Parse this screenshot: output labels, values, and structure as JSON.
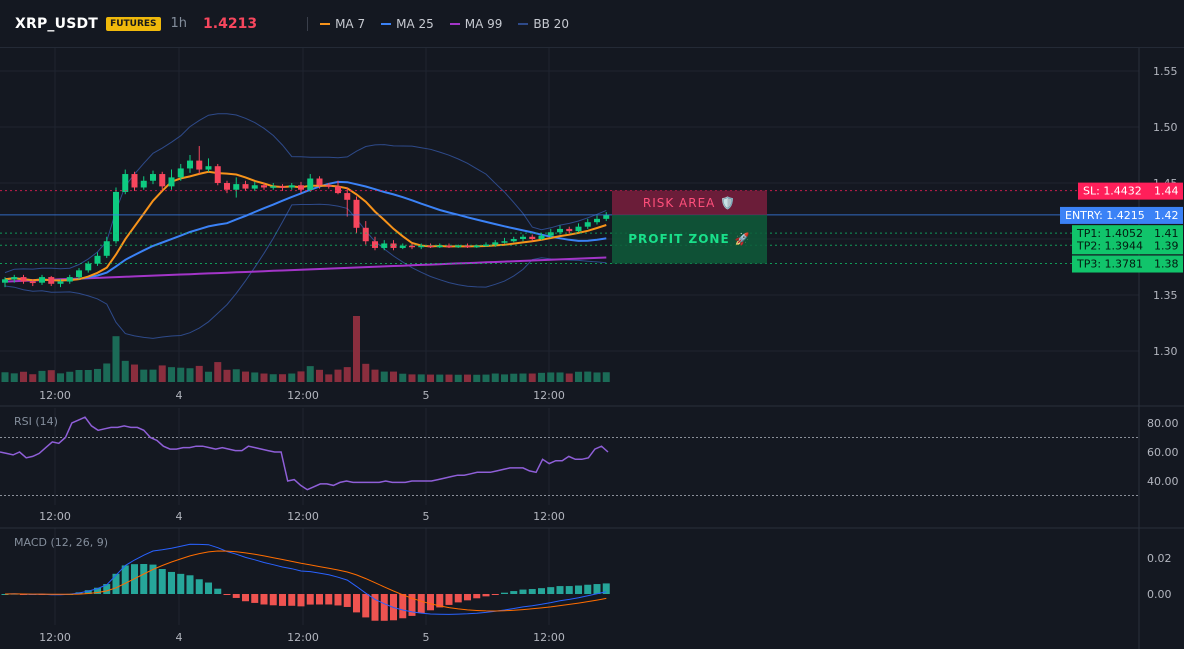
{
  "header": {
    "symbol": "XRP_USDT",
    "badge": "FUTURES",
    "timeframe": "1h",
    "last_price": "1.4213",
    "indicators": [
      {
        "label": "MA 7",
        "color": "#f7931a"
      },
      {
        "label": "MA 25",
        "color": "#3b82f6"
      },
      {
        "label": "MA 99",
        "color": "#a335c8"
      },
      {
        "label": "BB 20",
        "color": "#2e4a8a"
      }
    ]
  },
  "colors": {
    "background": "#141821",
    "up": "#0ecb81",
    "down": "#f6465d",
    "entry": "#3b82f6",
    "sl": "#ff1f5a",
    "tp": "#11c46b"
  },
  "time_axis": [
    "12:00",
    "4",
    "12:00",
    "5",
    "12:00"
  ],
  "price_axis": [
    "1.55",
    "1.50",
    "1.45",
    "1.40",
    "1.35",
    "1.30"
  ],
  "zones": {
    "risk_label": "RISK AREA 🛡️",
    "profit_label": "PROFIT ZONE 🚀"
  },
  "levels": [
    {
      "key": "sl",
      "text": "SL: 1.4432",
      "value": "1.44",
      "price": 1.4432
    },
    {
      "key": "entry",
      "text": "ENTRY: 1.4215",
      "value": "1.42",
      "price": 1.4215
    },
    {
      "key": "tp1",
      "text": "TP1: 1.4052",
      "value": "1.41",
      "price": 1.4052
    },
    {
      "key": "tp2",
      "text": "TP2: 1.3944",
      "value": "1.39",
      "price": 1.3944
    },
    {
      "key": "tp3",
      "text": "TP3: 1.3781",
      "value": "1.38",
      "price": 1.3781
    }
  ],
  "rsi": {
    "title": "RSI (14)",
    "axis": [
      "80.00",
      "60.00",
      "40.00"
    ],
    "overbought": 70,
    "oversold": 30,
    "values": [
      60,
      59,
      58,
      60,
      56,
      57,
      59,
      63,
      67,
      66,
      70,
      80,
      82,
      84,
      78,
      75,
      76,
      77,
      77,
      78,
      77,
      77,
      75,
      70,
      68,
      64,
      62,
      62,
      63,
      63,
      64,
      64,
      63,
      62,
      63,
      62,
      61,
      61,
      64,
      63,
      62,
      61,
      60,
      60,
      40,
      41,
      37,
      34,
      36,
      38,
      38,
      37,
      39,
      40,
      39,
      39,
      39,
      39,
      39,
      40,
      39,
      39,
      39,
      40,
      40,
      40,
      40,
      41,
      42,
      43,
      44,
      44,
      45,
      46,
      46,
      46,
      47,
      48,
      49,
      49,
      49,
      47,
      46,
      55,
      52,
      54,
      54,
      57,
      55,
      55,
      56,
      62,
      64,
      60
    ]
  },
  "macd": {
    "title": "MACD (12, 26, 9)",
    "axis": [
      "0.02",
      "0.00"
    ]
  },
  "candles": [
    [
      1.361,
      1.364,
      1.357,
      1.366
    ],
    [
      1.364,
      1.366,
      1.361,
      1.368
    ],
    [
      1.366,
      1.362,
      1.36,
      1.368
    ],
    [
      1.362,
      1.361,
      1.358,
      1.364
    ],
    [
      1.361,
      1.366,
      1.359,
      1.368
    ],
    [
      1.366,
      1.36,
      1.358,
      1.367
    ],
    [
      1.36,
      1.362,
      1.357,
      1.364
    ],
    [
      1.362,
      1.366,
      1.36,
      1.368
    ],
    [
      1.366,
      1.372,
      1.364,
      1.374
    ],
    [
      1.372,
      1.378,
      1.37,
      1.38
    ],
    [
      1.378,
      1.385,
      1.376,
      1.388
    ],
    [
      1.385,
      1.398,
      1.383,
      1.402
    ],
    [
      1.398,
      1.442,
      1.396,
      1.446
    ],
    [
      1.442,
      1.458,
      1.44,
      1.462
    ],
    [
      1.458,
      1.446,
      1.443,
      1.46
    ],
    [
      1.446,
      1.452,
      1.444,
      1.456
    ],
    [
      1.452,
      1.458,
      1.449,
      1.461
    ],
    [
      1.458,
      1.447,
      1.444,
      1.46
    ],
    [
      1.447,
      1.455,
      1.444,
      1.462
    ],
    [
      1.455,
      1.463,
      1.452,
      1.467
    ],
    [
      1.463,
      1.47,
      1.459,
      1.475
    ],
    [
      1.47,
      1.462,
      1.458,
      1.483
    ],
    [
      1.462,
      1.465,
      1.46,
      1.472
    ],
    [
      1.465,
      1.45,
      1.448,
      1.467
    ],
    [
      1.45,
      1.444,
      1.441,
      1.452
    ],
    [
      1.444,
      1.449,
      1.437,
      1.455
    ],
    [
      1.449,
      1.445,
      1.443,
      1.452
    ],
    [
      1.445,
      1.448,
      1.443,
      1.451
    ],
    [
      1.448,
      1.446,
      1.444,
      1.45
    ],
    [
      1.446,
      1.447,
      1.444,
      1.45
    ],
    [
      1.447,
      1.446,
      1.443,
      1.449
    ],
    [
      1.446,
      1.448,
      1.444,
      1.45
    ],
    [
      1.448,
      1.444,
      1.441,
      1.451
    ],
    [
      1.444,
      1.454,
      1.442,
      1.458
    ],
    [
      1.454,
      1.448,
      1.445,
      1.456
    ],
    [
      1.448,
      1.447,
      1.445,
      1.45
    ],
    [
      1.447,
      1.441,
      1.44,
      1.452
    ],
    [
      1.441,
      1.435,
      1.42,
      1.446
    ],
    [
      1.435,
      1.41,
      1.405,
      1.438
    ],
    [
      1.41,
      1.398,
      1.395,
      1.416
    ],
    [
      1.398,
      1.392,
      1.39,
      1.402
    ],
    [
      1.392,
      1.396,
      1.39,
      1.399
    ],
    [
      1.396,
      1.392,
      1.39,
      1.399
    ],
    [
      1.392,
      1.394,
      1.391,
      1.396
    ],
    [
      1.394,
      1.393,
      1.391,
      1.396
    ],
    [
      1.393,
      1.394,
      1.391,
      1.396
    ],
    [
      1.394,
      1.393,
      1.392,
      1.396
    ],
    [
      1.393,
      1.394,
      1.392,
      1.396
    ],
    [
      1.394,
      1.393,
      1.392,
      1.396
    ],
    [
      1.393,
      1.394,
      1.392,
      1.395
    ],
    [
      1.394,
      1.393,
      1.392,
      1.396
    ],
    [
      1.393,
      1.394,
      1.392,
      1.395
    ],
    [
      1.394,
      1.395,
      1.393,
      1.397
    ],
    [
      1.395,
      1.397,
      1.393,
      1.399
    ],
    [
      1.397,
      1.398,
      1.396,
      1.401
    ],
    [
      1.398,
      1.4,
      1.397,
      1.402
    ],
    [
      1.4,
      1.402,
      1.398,
      1.404
    ],
    [
      1.402,
      1.4,
      1.398,
      1.404
    ],
    [
      1.4,
      1.403,
      1.399,
      1.405
    ],
    [
      1.403,
      1.406,
      1.401,
      1.409
    ],
    [
      1.406,
      1.409,
      1.404,
      1.412
    ],
    [
      1.409,
      1.407,
      1.405,
      1.411
    ],
    [
      1.407,
      1.411,
      1.406,
      1.414
    ],
    [
      1.411,
      1.415,
      1.409,
      1.418
    ],
    [
      1.415,
      1.418,
      1.413,
      1.421
    ],
    [
      1.418,
      1.4213,
      1.416,
      1.424
    ]
  ]
}
